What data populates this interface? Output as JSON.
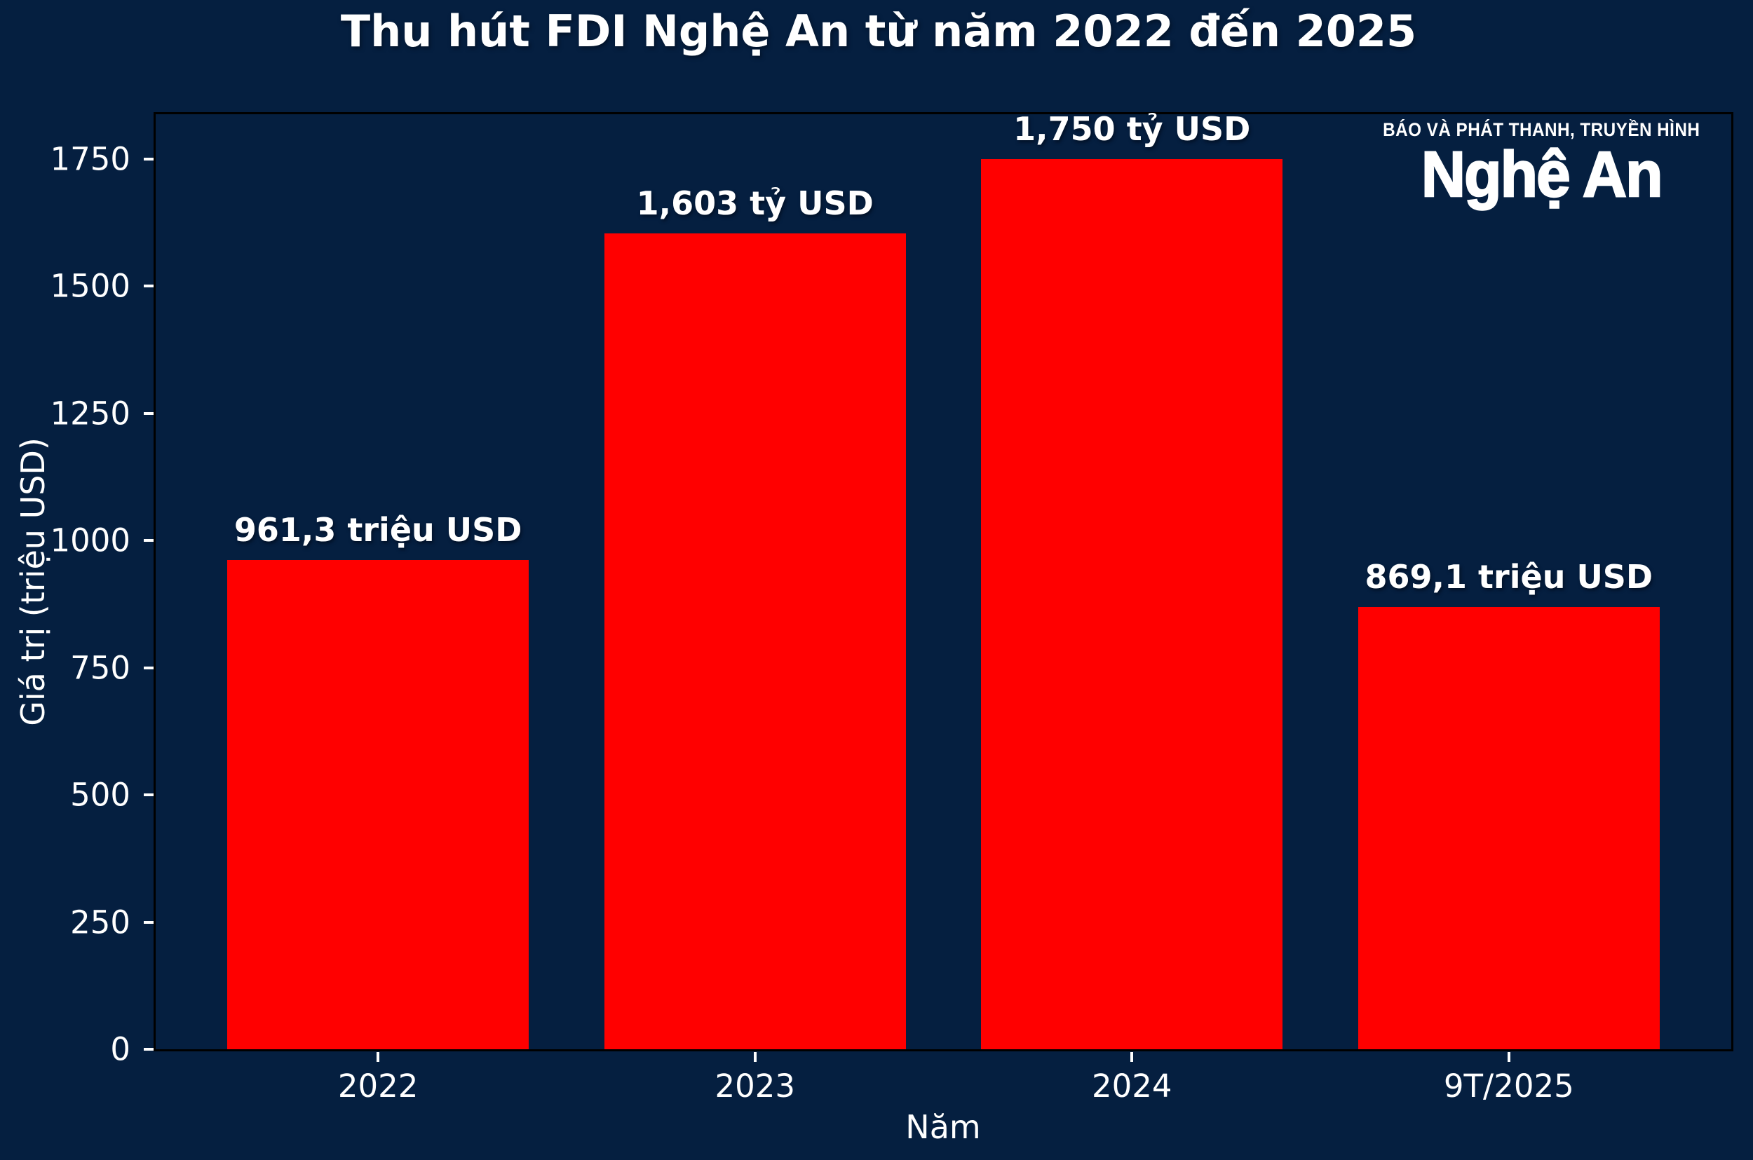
{
  "figure": {
    "background_color": "#051F40",
    "logo": {
      "line1": "BÁO VÀ PHÁT THANH, TRUYỀN HÌNH",
      "line2": "Nghệ An"
    }
  },
  "chart_data": {
    "type": "bar",
    "title": "Thu hút FDI Nghệ An từ năm 2022 đến 2025",
    "categories": [
      "2022",
      "2023",
      "2024",
      "9T/2025"
    ],
    "values": [
      961.3,
      1603,
      1750,
      869.1
    ],
    "bar_labels": [
      "961,3 triệu USD",
      "1,603 tỷ USD",
      "1,750 tỷ USD",
      "869,1 triệu USD"
    ],
    "xlabel": "Năm",
    "ylabel": "Giá trị (triệu USD)",
    "yticks": [
      0,
      250,
      500,
      750,
      1000,
      1250,
      1500,
      1750
    ],
    "ylim": [
      0,
      1837.5
    ],
    "xlim": [
      -0.59,
      3.59
    ],
    "bar_width": 0.8,
    "bar_color": "#FF0000",
    "background_color": "#051F40",
    "spine_color": "#000000",
    "tick_color": "#FFFFFF",
    "text_color": "#FFFFFF",
    "grid": false,
    "legend": null
  }
}
